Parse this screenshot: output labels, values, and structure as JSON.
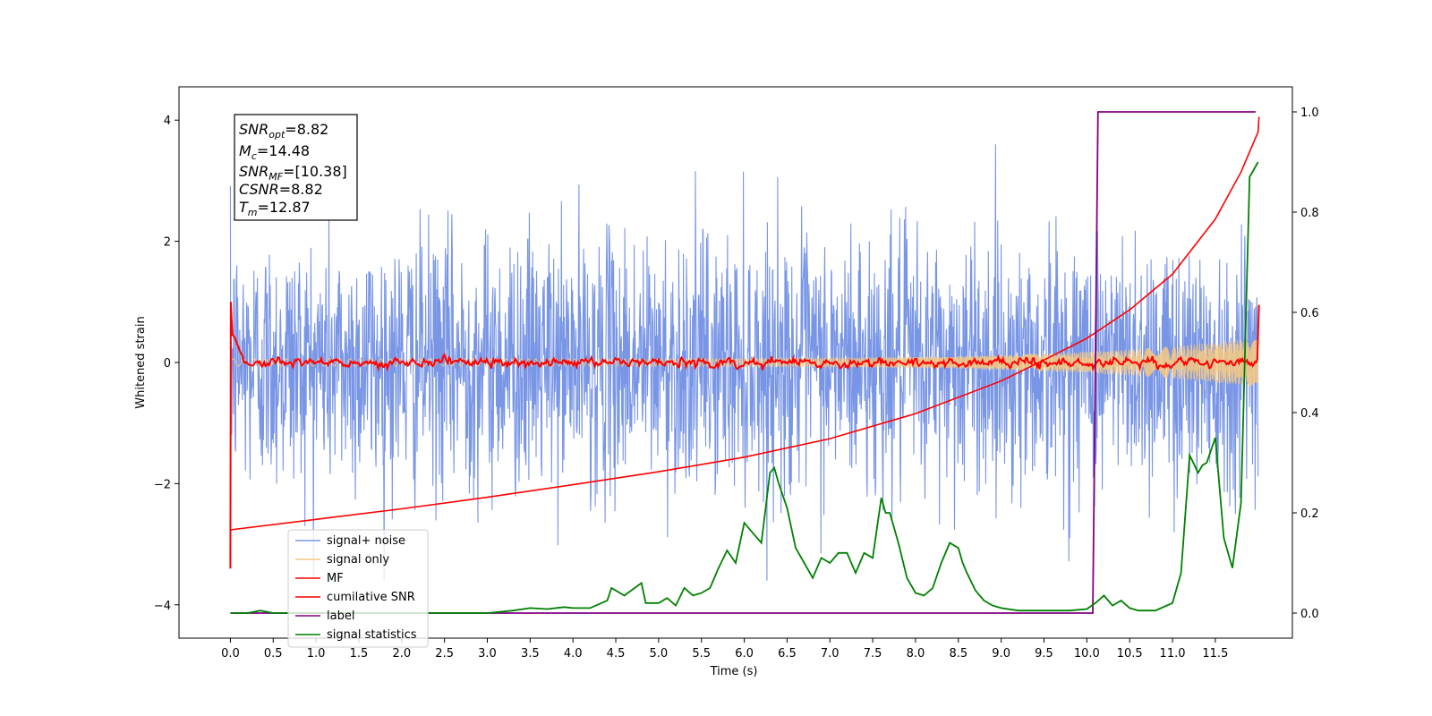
{
  "chart_data": {
    "type": "line",
    "xlabel": "Time (s)",
    "ylabel": "Whitened strain",
    "xlim": [
      -0.6,
      12.4
    ],
    "ylim": [
      -4.55,
      4.55
    ],
    "y2lim": [
      -0.05,
      1.05
    ],
    "x_ticks": [
      "0.0",
      "0.5",
      "1.0",
      "1.5",
      "2.0",
      "2.5",
      "3.0",
      "3.5",
      "4.0",
      "4.5",
      "5.0",
      "5.5",
      "6.0",
      "6.5",
      "7.0",
      "7.5",
      "8.0",
      "8.5",
      "9.0",
      "9.5",
      "10.0",
      "10.5",
      "11.0",
      "11.5"
    ],
    "y_ticks": [
      "4",
      "2",
      "0",
      "−2",
      "−4"
    ],
    "y2_ticks": [
      "1.0",
      "0.8",
      "0.6",
      "0.4",
      "0.2",
      "0.0"
    ],
    "legend_position": "lower-left",
    "info_box": {
      "snr_opt": {
        "base": "SNR",
        "sub": "opt",
        "value": "=8.82"
      },
      "mc": {
        "base": "M",
        "sub": "c",
        "value": "=14.48"
      },
      "snr_mf": {
        "base": "SNR",
        "sub": "MF",
        "value": "=[10.38]"
      },
      "csnr": {
        "base": "CSNR",
        "value": "=8.82"
      },
      "tm": {
        "base": "T",
        "sub": "m",
        "value": "=12.87"
      }
    },
    "series": [
      {
        "name": "signal+ noise",
        "color": "#7895e6",
        "axis": "left",
        "description_range": [
          -3.6,
          4.1
        ]
      },
      {
        "name": "signal only",
        "color": "#f7c97f",
        "axis": "left"
      },
      {
        "name": "MF",
        "color": "#ff0000",
        "axis": "left"
      },
      {
        "name": "cumilative SNR",
        "color": "#ff0000",
        "axis": "right",
        "x": [
          0.0,
          1.0,
          2.0,
          3.0,
          4.0,
          5.0,
          6.0,
          7.0,
          8.0,
          9.0,
          9.5,
          10.0,
          10.5,
          11.0,
          11.5,
          11.8,
          12.0,
          12.01
        ],
        "y": [
          0.166,
          0.187,
          0.208,
          0.231,
          0.256,
          0.282,
          0.311,
          0.348,
          0.398,
          0.463,
          0.505,
          0.548,
          0.605,
          0.676,
          0.786,
          0.88,
          0.96,
          0.99
        ]
      },
      {
        "name": "label",
        "color": "#800080",
        "axis": "right",
        "x": [
          0.0,
          10.07,
          10.13,
          11.97
        ],
        "y": [
          0.0,
          0.0,
          1.0,
          1.0
        ]
      },
      {
        "name": "signal statistics",
        "color": "#008000",
        "axis": "right",
        "x": [
          0.0,
          0.2,
          0.35,
          0.5,
          0.8,
          1.0,
          1.5,
          2.0,
          2.5,
          3.0,
          3.3,
          3.5,
          3.7,
          3.9,
          4.0,
          4.2,
          4.4,
          4.45,
          4.6,
          4.8,
          4.85,
          5.0,
          5.1,
          5.2,
          5.3,
          5.4,
          5.5,
          5.6,
          5.7,
          5.8,
          5.9,
          6.0,
          6.1,
          6.2,
          6.3,
          6.35,
          6.4,
          6.5,
          6.6,
          6.7,
          6.8,
          6.9,
          7.0,
          7.1,
          7.2,
          7.3,
          7.4,
          7.5,
          7.6,
          7.65,
          7.7,
          7.8,
          7.9,
          8.0,
          8.1,
          8.2,
          8.3,
          8.4,
          8.5,
          8.55,
          8.6,
          8.7,
          8.8,
          8.9,
          9.0,
          9.2,
          9.5,
          9.8,
          10.0,
          10.1,
          10.2,
          10.3,
          10.4,
          10.5,
          10.6,
          10.8,
          11.0,
          11.1,
          11.2,
          11.3,
          11.35,
          11.4,
          11.5,
          11.6,
          11.7,
          11.8,
          11.9,
          12.0
        ],
        "y": [
          0.0,
          0.0,
          0.005,
          0.0,
          0.0,
          0.0,
          0.0,
          0.0,
          0.0,
          0.0,
          0.005,
          0.01,
          0.008,
          0.012,
          0.01,
          0.01,
          0.025,
          0.05,
          0.035,
          0.06,
          0.02,
          0.02,
          0.03,
          0.015,
          0.05,
          0.035,
          0.04,
          0.05,
          0.09,
          0.125,
          0.1,
          0.18,
          0.16,
          0.14,
          0.28,
          0.29,
          0.26,
          0.21,
          0.13,
          0.1,
          0.07,
          0.11,
          0.1,
          0.12,
          0.12,
          0.08,
          0.12,
          0.11,
          0.23,
          0.2,
          0.2,
          0.14,
          0.07,
          0.04,
          0.035,
          0.05,
          0.1,
          0.14,
          0.13,
          0.1,
          0.08,
          0.045,
          0.025,
          0.015,
          0.01,
          0.005,
          0.005,
          0.005,
          0.008,
          0.02,
          0.035,
          0.015,
          0.025,
          0.01,
          0.005,
          0.005,
          0.02,
          0.08,
          0.315,
          0.28,
          0.295,
          0.3,
          0.35,
          0.15,
          0.09,
          0.22,
          0.87,
          0.9
        ]
      }
    ]
  }
}
